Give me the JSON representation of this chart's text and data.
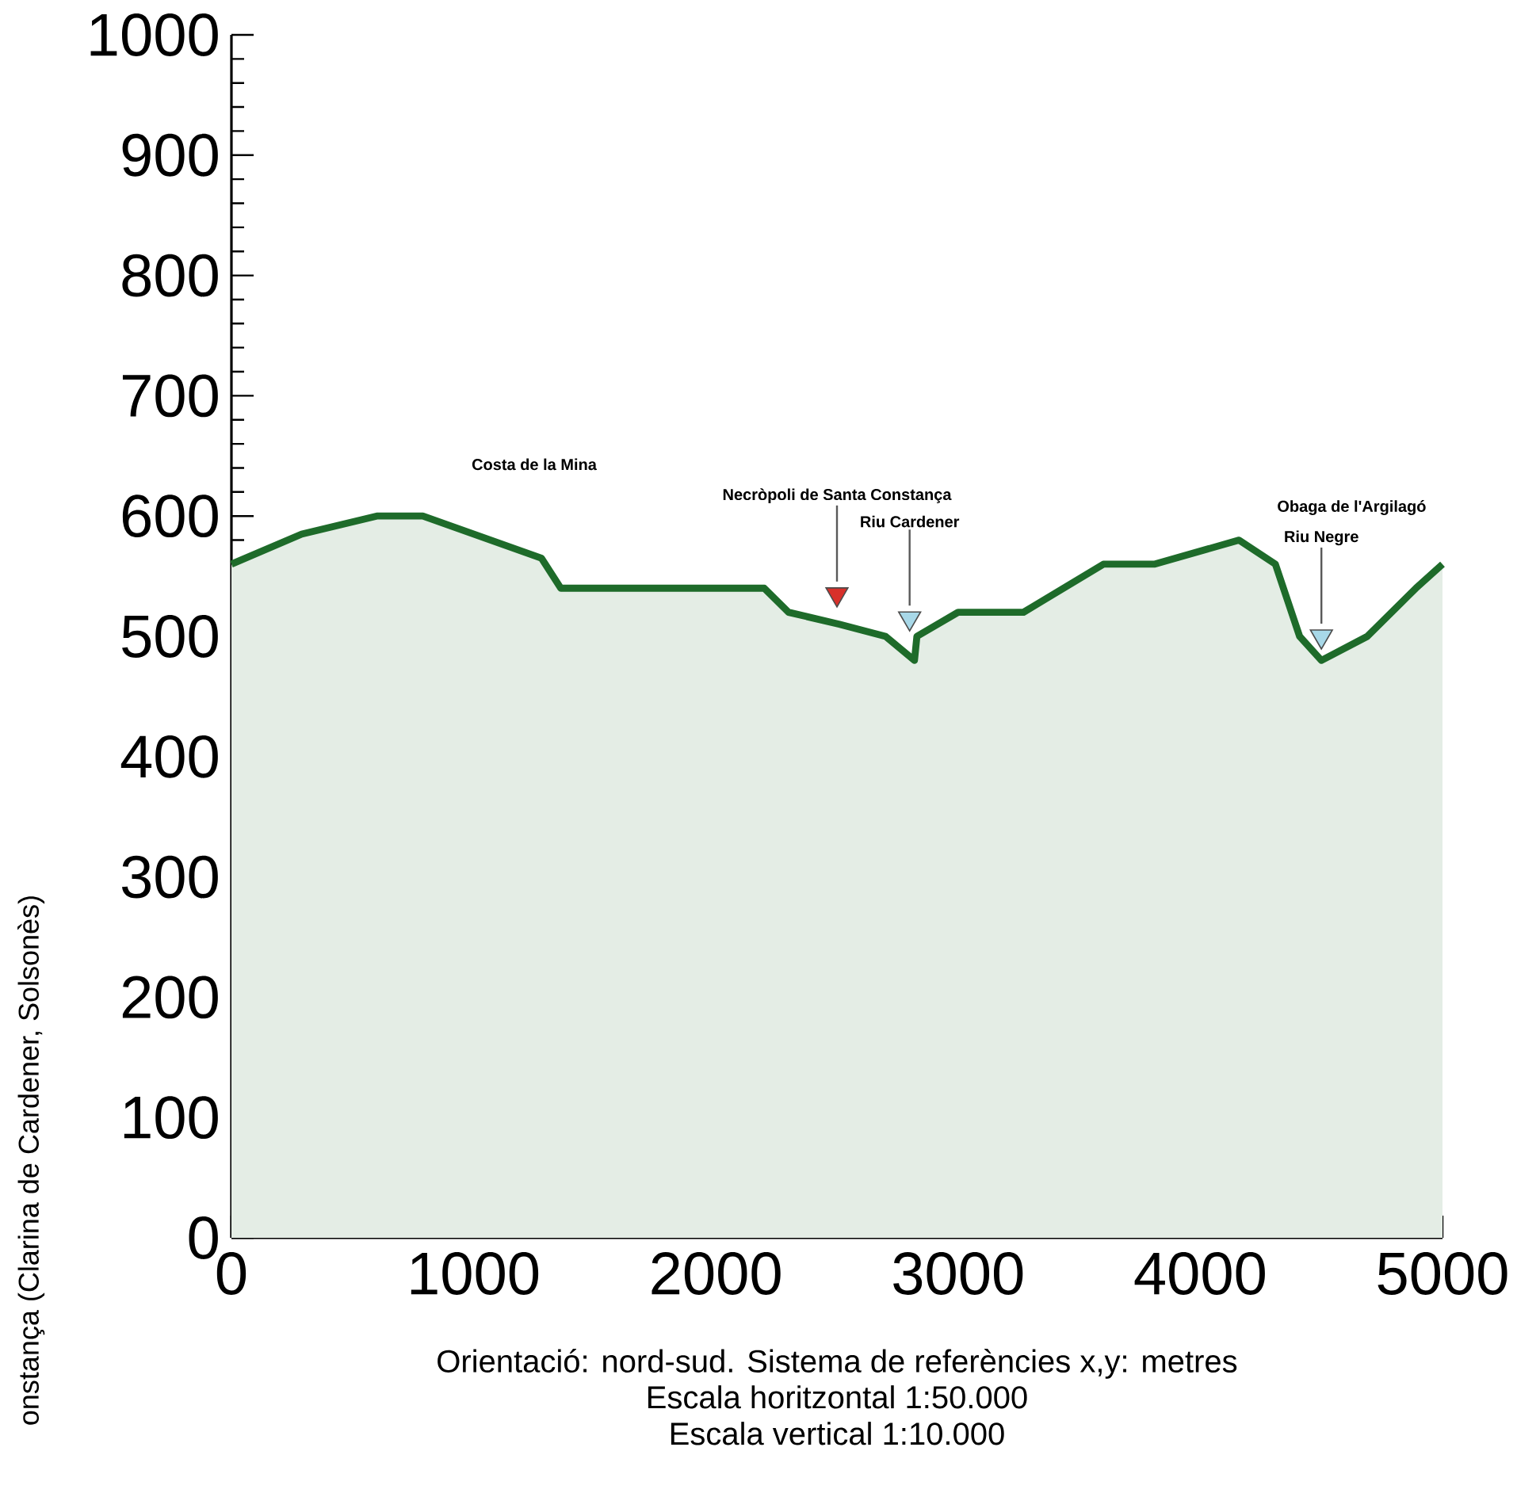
{
  "chart_data": {
    "type": "area",
    "ylabel": "onstança (Clarina de Cardener, Solsonès)",
    "xlim": [
      0,
      5000
    ],
    "ylim": [
      0,
      1000
    ],
    "xticks": [
      0,
      1000,
      2000,
      3000,
      4000,
      5000
    ],
    "yticks": [
      0,
      100,
      200,
      300,
      400,
      500,
      600,
      700,
      800,
      900,
      1000
    ],
    "series": [
      {
        "color": "#1e6b2a",
        "x": [
          0,
          290,
          600,
          790,
          1280,
          1360,
          2200,
          2300,
          2510,
          2700,
          2820,
          2830,
          3000,
          3270,
          3600,
          3810,
          4160,
          4310,
          4410,
          4500,
          4690,
          4890,
          5000
        ],
        "values": [
          560,
          585,
          600,
          600,
          565,
          540,
          540,
          520,
          510,
          500,
          480,
          500,
          520,
          520,
          560,
          560,
          580,
          560,
          500,
          480,
          500,
          540,
          560
        ]
      },
      {
        "type": "scatter",
        "marker": "triangle",
        "x": [
          2500,
          2800,
          4500
        ],
        "values": [
          535,
          515,
          500
        ],
        "colors": [
          "#d8302a",
          "#a8d8e8",
          "#a8d8e8"
        ]
      }
    ],
    "annotations": [
      "Costa de la Mina",
      {
        "text": "Necròpoli de Santa Constança",
        "x": 2500,
        "y": 535
      },
      {
        "text": "Riu Cardener",
        "x": 2800,
        "y": 515
      },
      "Obaga de l'Argilagó",
      {
        "text": "Riu Negre",
        "x": 4500,
        "y": 500
      },
      "Orientació: nord-sud. Sistema de referències x,y: metres",
      "Escala horitzontal 1:50.000",
      "Escala vertical 1:10.000"
    ]
  }
}
